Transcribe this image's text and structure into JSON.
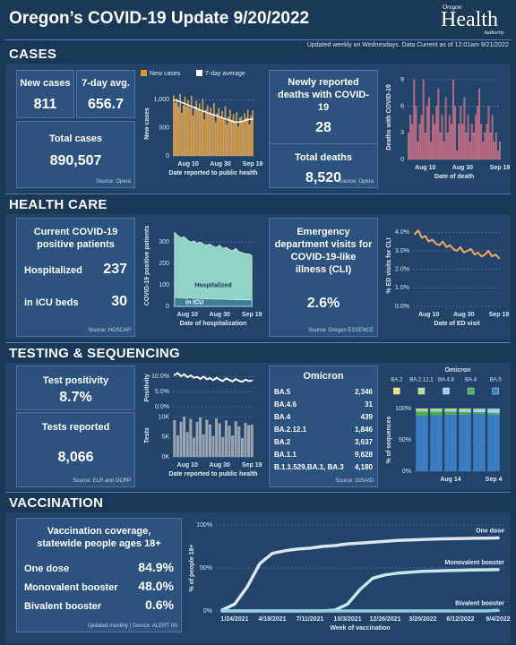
{
  "header": {
    "title": "Oregon’s COVID-19 Update 9/20/2022",
    "logo_top": "Oregon",
    "logo_main": "Health",
    "logo_bottom": "Authority",
    "updated": "Updated weekly on Wednesdays. Data Current as of 12:01am 9/21/2022"
  },
  "cases": {
    "heading": "CASES",
    "new_cases": {
      "label": "New cases",
      "value": "811"
    },
    "avg": {
      "label": "7-day avg.",
      "value": "656.7"
    },
    "total": {
      "label": "Total cases",
      "value": "890,507",
      "source": "Source: Opera"
    },
    "deaths": {
      "label": "Newly reported deaths with COVID-19",
      "value": "28",
      "total_label": "Total deaths",
      "total_value": "8,520",
      "source": "Source: Opera"
    }
  },
  "health_care": {
    "heading": "HEALTH CARE",
    "patients": {
      "label": "Current COVID-19 positive patients",
      "hospitalized_label": "Hospitalized",
      "hospitalized": "237",
      "icu_label": "in ICU beds",
      "icu": "30",
      "source": "Source: HOSCAP"
    },
    "ed": {
      "label": "Emergency department visits for COVID-19-like illness (CLI)",
      "value": "2.6%",
      "source": "Source: Oregon ESSENCE"
    }
  },
  "testing": {
    "heading": "TESTING & SEQUENCING",
    "positivity": {
      "label": "Test positivity",
      "value": "8.7%"
    },
    "tests": {
      "label": "Tests reported",
      "value": "8,066",
      "source": "Source: ELR and OCRP"
    },
    "omicron_table": {
      "title": "Omicron",
      "rows": [
        [
          "BA.5",
          "2,346"
        ],
        [
          "BA.4.6",
          "31"
        ],
        [
          "BA.4",
          "439"
        ],
        [
          "BA.2.12.1",
          "1,846"
        ],
        [
          "BA.2",
          "3,637"
        ],
        [
          "BA.1.1",
          "9,628"
        ],
        [
          "B.1.1.529,BA.1, BA.3",
          "4,180"
        ]
      ],
      "source": "Source: GISAID"
    }
  },
  "vaccination": {
    "heading": "VACCINATION",
    "card": {
      "title": "Vaccination coverage, statewide people ages 18+",
      "rows": [
        [
          "One dose",
          "84.9%"
        ],
        [
          "Monovalent booster",
          "48.0%"
        ],
        [
          "Bivalent booster",
          "0.6%"
        ]
      ],
      "source": "Updated monthly | Source: ALERT IIS"
    }
  },
  "chart_data": [
    {
      "type": "combo",
      "ylabel": "New cases",
      "xlabel": "Date reported to public health",
      "grid": true,
      "legend": "top",
      "categories": [
        null,
        null,
        null,
        null,
        null,
        null,
        null,
        null,
        null,
        "Aug 10",
        null,
        null,
        null,
        null,
        null,
        null,
        null,
        null,
        null,
        null,
        null,
        null,
        null,
        null,
        null,
        null,
        null,
        null,
        null,
        "Aug 30",
        null,
        null,
        null,
        null,
        null,
        null,
        null,
        null,
        null,
        null,
        null,
        null,
        null,
        null,
        null,
        null,
        null,
        null,
        null,
        "Sep 19"
      ],
      "series": [
        {
          "name": "New cases",
          "type": "bar",
          "color": "#e0962a",
          "values": [
            1080,
            950,
            1020,
            880,
            1100,
            760,
            900,
            1050,
            880,
            990,
            850,
            1070,
            720,
            880,
            980,
            820,
            930,
            790,
            1010,
            650,
            820,
            900,
            760,
            860,
            720,
            940,
            600,
            760,
            850,
            700,
            800,
            660,
            880,
            560,
            700,
            820,
            640,
            740,
            600,
            780,
            520,
            680,
            700,
            620,
            760,
            680,
            820,
            560,
            720,
            811
          ]
        },
        {
          "name": "7-day average",
          "type": "line",
          "color": "#ffffff",
          "values": [
            1000,
            990,
            985,
            975,
            965,
            950,
            940,
            930,
            920,
            905,
            895,
            880,
            870,
            860,
            850,
            835,
            820,
            810,
            800,
            790,
            780,
            770,
            760,
            750,
            740,
            730,
            720,
            710,
            700,
            690,
            680,
            670,
            660,
            650,
            640,
            630,
            620,
            610,
            605,
            600,
            600,
            605,
            610,
            620,
            630,
            640,
            645,
            650,
            655,
            656.7
          ]
        }
      ],
      "ylim": [
        0,
        1150
      ],
      "yticks": [
        0,
        500,
        {
          "value": 1000,
          "label": "1,000"
        }
      ]
    },
    {
      "type": "bar",
      "ylabel": "Deaths with COVID-19",
      "xlabel": "Date of death",
      "grid": true,
      "categories": [
        null,
        null,
        null,
        null,
        null,
        null,
        null,
        null,
        null,
        "Aug 10",
        null,
        null,
        null,
        null,
        null,
        null,
        null,
        null,
        null,
        null,
        null,
        null,
        null,
        null,
        null,
        null,
        null,
        null,
        null,
        "Aug 30",
        null,
        null,
        null,
        null,
        null,
        null,
        null,
        null,
        null,
        null,
        null,
        null,
        null,
        null,
        null,
        null,
        null,
        null,
        null,
        "Sep 19"
      ],
      "series": [
        {
          "name": "Deaths",
          "color": "#c8566f",
          "values": [
            3,
            5,
            4,
            9,
            6,
            2,
            4,
            5,
            9,
            3,
            6,
            7,
            2,
            5,
            4,
            6,
            8,
            3,
            5,
            2,
            7,
            3,
            5,
            4,
            9,
            6,
            1,
            4,
            6,
            4,
            7,
            3,
            5,
            2,
            4,
            3,
            5,
            6,
            8,
            4,
            2,
            3,
            4,
            6,
            3,
            5,
            2,
            3,
            1,
            2
          ]
        }
      ],
      "ylim": [
        0,
        9.5
      ],
      "yticks": [
        0,
        3,
        6,
        9
      ]
    },
    {
      "type": "area",
      "ylabel": "COVID-19 positive patients",
      "xlabel": "Date of hospitalization",
      "grid": true,
      "series_labels": "inside",
      "categories": [
        null,
        null,
        null,
        null,
        "Aug 10",
        null,
        null,
        null,
        null,
        null,
        null,
        null,
        null,
        null,
        "Aug 30",
        null,
        null,
        null,
        null,
        null,
        null,
        null,
        null,
        null,
        "Sep 19"
      ],
      "series": [
        {
          "name": "Hospitalized",
          "color": "#8fd3c5",
          "values": [
            345,
            330,
            320,
            325,
            310,
            300,
            305,
            295,
            300,
            290,
            285,
            290,
            280,
            275,
            285,
            270,
            275,
            265,
            260,
            270,
            255,
            250,
            245,
            245,
            237
          ]
        },
        {
          "name": "in ICU",
          "color": "#3f7f95",
          "values": [
            42,
            40,
            41,
            39,
            38,
            40,
            37,
            38,
            36,
            37,
            35,
            36,
            34,
            35,
            33,
            34,
            33,
            32,
            33,
            31,
            32,
            31,
            30,
            31,
            30
          ]
        }
      ],
      "ylim": [
        0,
        380
      ],
      "yticks": [
        0,
        100,
        200,
        300
      ]
    },
    {
      "type": "line",
      "ylabel": "% ED visits for CLI",
      "xlabel": "Date of ED visit",
      "grid": true,
      "categories": [
        null,
        null,
        null,
        null,
        "Aug 10",
        null,
        null,
        null,
        null,
        null,
        null,
        null,
        null,
        null,
        "Aug 30",
        null,
        null,
        null,
        null,
        null,
        null,
        null,
        null,
        null,
        "Sep 19"
      ],
      "series": [
        {
          "name": "CLI visits",
          "color": "#f0a860",
          "values": [
            3.9,
            4.1,
            3.7,
            3.8,
            3.5,
            3.6,
            3.4,
            3.3,
            3.5,
            3.2,
            3.3,
            3.1,
            3.0,
            3.2,
            2.9,
            3.0,
            3.1,
            2.8,
            2.9,
            2.7,
            2.8,
            3.0,
            2.7,
            2.8,
            2.6
          ]
        }
      ],
      "ylim": [
        0,
        4.4
      ],
      "yticks": [
        {
          "value": 0,
          "label": "0.0%"
        },
        {
          "value": 1,
          "label": "1.0%"
        },
        {
          "value": 2,
          "label": "2.0%"
        },
        {
          "value": 3,
          "label": "3.0%"
        },
        {
          "value": 4,
          "label": "4.0%"
        }
      ]
    },
    {
      "type": "line",
      "ylabel": "Positivity",
      "grid": true,
      "series": [
        {
          "name": "Positivity",
          "color": "#ffffff",
          "values": [
            10.5,
            11.2,
            10.1,
            10.8,
            9.8,
            10.4,
            9.6,
            9.9,
            9.2,
            10.0,
            9.1,
            9.5,
            8.8,
            9.6,
            9.0,
            8.5,
            9.4,
            8.9,
            8.4,
            9.2,
            8.6,
            8.3,
            9.0,
            8.5,
            8.7
          ]
        }
      ],
      "ylim": [
        0,
        12.5
      ],
      "yticks": [
        {
          "value": 0,
          "label": "0.0%"
        },
        {
          "value": 5,
          "label": "5.0%"
        },
        {
          "value": 10,
          "label": "10.0%"
        }
      ]
    },
    {
      "type": "bar",
      "ylabel": "Tests",
      "xlabel": "Date reported to public health",
      "grid": true,
      "categories": [
        null,
        null,
        null,
        null,
        "Aug 10",
        null,
        null,
        null,
        null,
        null,
        null,
        null,
        null,
        null,
        "Aug 30",
        null,
        null,
        null,
        null,
        null,
        null,
        null,
        null,
        null,
        "Sep 19"
      ],
      "series": [
        {
          "name": "Tests",
          "color": "#9aa3ad",
          "values": [
            9200,
            5400,
            8800,
            10100,
            6200,
            9500,
            4800,
            8700,
            9900,
            5600,
            9300,
            8100,
            5200,
            9600,
            8400,
            4900,
            9100,
            7800,
            5300,
            8900,
            7600,
            4700,
            8500,
            7900,
            8066
          ]
        }
      ],
      "ylim": [
        0,
        10800
      ],
      "yticks": [
        {
          "value": 0,
          "label": "0K"
        },
        {
          "value": 5000,
          "label": "5K"
        },
        {
          "value": 10000,
          "label": "10K"
        }
      ]
    },
    {
      "type": "bar",
      "stacked": true,
      "ylabel": "% of sequences",
      "grid": true,
      "legend": "top",
      "legend_title": "Omicron",
      "categories": [
        null,
        null,
        "Aug 14",
        null,
        null,
        "Sep 4"
      ],
      "series": [
        {
          "name": "BA.2",
          "color": "#f2e16a",
          "values": [
            1,
            1,
            1,
            1,
            0.5,
            0.5
          ]
        },
        {
          "name": "BA.2.12.1",
          "color": "#b7e08c",
          "values": [
            2,
            1,
            1,
            1,
            0.5,
            0.5
          ]
        },
        {
          "name": "BA.4.6",
          "color": "#9fd2f0",
          "values": [
            2,
            3,
            3,
            4,
            5,
            6
          ]
        },
        {
          "name": "BA.4",
          "color": "#4cae4c",
          "values": [
            7,
            6,
            5,
            4,
            3,
            3
          ]
        },
        {
          "name": "BA.5",
          "color": "#3a7dc0",
          "values": [
            88,
            89,
            90,
            90,
            91,
            90
          ]
        }
      ],
      "ylim": [
        0,
        100
      ],
      "yticks": [
        {
          "value": 0,
          "label": "0%"
        },
        {
          "value": 50,
          "label": "50%"
        },
        {
          "value": 100,
          "label": "100%"
        }
      ]
    },
    {
      "type": "line",
      "ylabel": "% of people 18+",
      "xlabel": "Week of vaccination",
      "grid": true,
      "series_labels": "end",
      "categories": [
        null,
        "1/24/2021",
        null,
        null,
        "4/18/2021",
        null,
        null,
        "7/11/2021",
        null,
        null,
        "10/3/2021",
        null,
        null,
        "12/26/2021",
        null,
        null,
        "3/20/2022",
        null,
        null,
        "6/12/2022",
        null,
        null,
        "9/4/2022"
      ],
      "series": [
        {
          "name": "One dose",
          "color": "#dde4ee",
          "values": [
            1,
            8,
            28,
            55,
            67,
            70,
            72,
            73,
            75,
            76,
            78,
            79,
            80,
            81,
            82,
            82.5,
            83,
            83.5,
            84,
            84.3,
            84.5,
            84.7,
            84.9
          ]
        },
        {
          "name": "Monovalent booster",
          "color": "#bfe8e8",
          "values": [
            0,
            0,
            0,
            0,
            0,
            0,
            0,
            0,
            0,
            1,
            8,
            25,
            38,
            42,
            44,
            45,
            46,
            46.5,
            47,
            47.3,
            47.6,
            47.8,
            48.0
          ]
        },
        {
          "name": "Bivalent booster",
          "color": "#8fcfe0",
          "values": [
            0,
            0,
            0,
            0,
            0,
            0,
            0,
            0,
            0,
            0,
            0,
            0,
            0,
            0,
            0,
            0,
            0,
            0,
            0,
            0,
            0,
            0,
            0.6
          ]
        }
      ],
      "ylim": [
        0,
        100
      ],
      "yticks": [
        {
          "value": 0,
          "label": "0%"
        },
        {
          "value": 50,
          "label": "50%"
        },
        {
          "value": 100,
          "label": "100%"
        }
      ]
    }
  ]
}
